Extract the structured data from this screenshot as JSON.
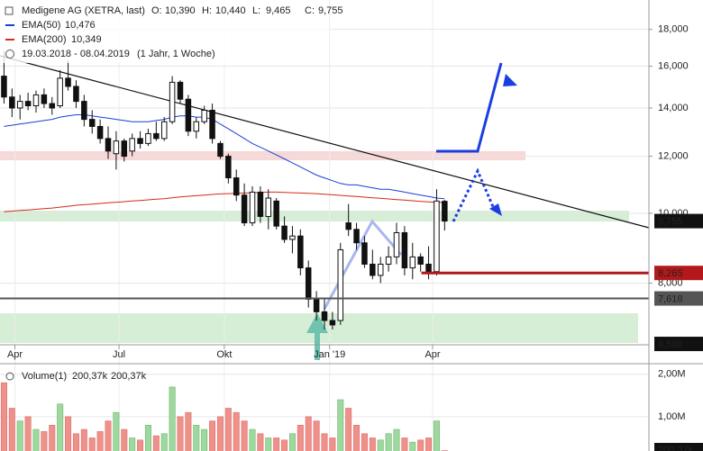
{
  "chart_data": {
    "type": "candlestick",
    "title": "Medigene AG (XETRA, last)",
    "ohlc_header": [
      {
        "key": "O:",
        "label": "10,390"
      },
      {
        "key": "H:",
        "label": "10,440"
      },
      {
        "key": "L:",
        "label": "9,465"
      },
      {
        "key": "C:",
        "label": "9,755"
      }
    ],
    "date_range": "19.03.2018 - 08.04.2019",
    "period": "(1 Jahr, 1 Woche)",
    "xlim": [
      0,
      81
    ],
    "xticks": [
      {
        "value": 1.86,
        "label": "Apr"
      },
      {
        "value": 14.86,
        "label": "Jul"
      },
      {
        "value": 28,
        "label": "Okt"
      },
      {
        "value": 41.14,
        "label": "Jan '19"
      },
      {
        "value": 54,
        "label": "Apr"
      }
    ],
    "ylim": [
      6570,
      19770
    ],
    "log_scale": true,
    "grid": true,
    "yticks": [
      {
        "value": 8000,
        "label": "8,000"
      },
      {
        "value": 10000,
        "label": "10,000"
      },
      {
        "value": 12000,
        "label": "12,000"
      },
      {
        "value": 14000,
        "label": "14,000"
      },
      {
        "value": 16000,
        "label": "16,000"
      },
      {
        "value": 18000,
        "label": "18,000"
      }
    ],
    "up_color": "#ffffff",
    "down_color": "#111111",
    "candles": {
      "open": [
        15500,
        14500,
        14000,
        14300,
        14100,
        14600,
        14200,
        14100,
        15400,
        15000,
        14300,
        13500,
        13200,
        12700,
        12100,
        12600,
        12200,
        12700,
        12500,
        12900,
        12700,
        13400,
        15200,
        14400,
        13000,
        13400,
        13900,
        12500,
        12000,
        11200,
        10600,
        9700,
        10700,
        9900,
        10400,
        9600,
        9200,
        9300,
        8400,
        7600,
        7300,
        7100,
        7100,
        9700,
        9500,
        9100,
        8500,
        8200,
        8500,
        8700,
        9400,
        8400,
        8700,
        8500,
        8300,
        10390
      ],
      "high": [
        16800,
        14900,
        14600,
        14700,
        14800,
        14900,
        14500,
        15800,
        16300,
        15300,
        14600,
        13900,
        13500,
        13200,
        13000,
        12700,
        12900,
        13000,
        13100,
        13400,
        13600,
        15500,
        15300,
        14600,
        13600,
        14100,
        14200,
        12600,
        12100,
        11500,
        11000,
        10900,
        10900,
        10800,
        10500,
        9900,
        9600,
        9500,
        8600,
        7800,
        7600,
        7300,
        9100,
        10300,
        9700,
        9300,
        8900,
        8700,
        9000,
        9700,
        9600,
        9100,
        8800,
        9000,
        10800,
        10440
      ],
      "low": [
        14200,
        13600,
        13500,
        13900,
        13800,
        14000,
        13700,
        14000,
        14800,
        14000,
        13200,
        12900,
        12500,
        11900,
        11500,
        11800,
        12000,
        12300,
        12400,
        12600,
        12600,
        13300,
        14200,
        12800,
        12700,
        13300,
        12500,
        11900,
        11000,
        10400,
        9600,
        9600,
        9700,
        9500,
        9500,
        9100,
        8800,
        8200,
        7400,
        7100,
        6900,
        6900,
        7000,
        9300,
        8900,
        8400,
        8100,
        8000,
        8300,
        8500,
        8200,
        8100,
        8300,
        8100,
        8200,
        9465
      ],
      "close": [
        14500,
        14000,
        14300,
        14100,
        14600,
        14200,
        14000,
        15400,
        15000,
        14300,
        13500,
        13200,
        12700,
        12200,
        12600,
        12000,
        12700,
        12500,
        12900,
        12700,
        13400,
        15200,
        14400,
        13000,
        13400,
        13900,
        12700,
        12000,
        11200,
        10600,
        9700,
        10700,
        9900,
        10500,
        9600,
        9200,
        9300,
        8400,
        7600,
        7300,
        7100,
        7000,
        8900,
        9500,
        9100,
        8500,
        8200,
        8500,
        8700,
        9400,
        8400,
        8700,
        8500,
        8300,
        10400,
        9755
      ]
    },
    "series": [
      {
        "name": "EMA(50)",
        "color": "#1a3fd6",
        "last_label": "10,476",
        "values": [
          13200,
          13250,
          13300,
          13350,
          13400,
          13450,
          13500,
          13600,
          13650,
          13700,
          13700,
          13650,
          13600,
          13550,
          13500,
          13450,
          13400,
          13400,
          13400,
          13450,
          13500,
          13600,
          13650,
          13650,
          13600,
          13600,
          13500,
          13300,
          13100,
          12900,
          12700,
          12500,
          12350,
          12200,
          12050,
          11900,
          11750,
          11600,
          11450,
          11300,
          11200,
          11100,
          11000,
          10950,
          10950,
          10900,
          10850,
          10800,
          10800,
          10750,
          10700,
          10650,
          10600,
          10550,
          10500,
          10476
        ]
      },
      {
        "name": "EMA(200)",
        "color": "#d62a1a",
        "last_label": "10,349",
        "values": [
          10050,
          10070,
          10090,
          10110,
          10130,
          10150,
          10170,
          10200,
          10230,
          10260,
          10280,
          10300,
          10320,
          10340,
          10360,
          10380,
          10400,
          10420,
          10440,
          10460,
          10480,
          10510,
          10540,
          10560,
          10580,
          10600,
          10620,
          10640,
          10650,
          10660,
          10670,
          10680,
          10690,
          10700,
          10700,
          10690,
          10680,
          10670,
          10660,
          10650,
          10630,
          10610,
          10590,
          10570,
          10550,
          10530,
          10510,
          10490,
          10470,
          10450,
          10430,
          10410,
          10390,
          10375,
          10360,
          10349
        ]
      }
    ],
    "levels": [
      {
        "value": 9755,
        "label": "9,755",
        "color": "#111111"
      },
      {
        "value": 8265,
        "label": "8,265",
        "color": "#b3191b"
      },
      {
        "value": 7618,
        "label": "7,618",
        "color": "#555555"
      },
      {
        "value": 6588,
        "label": "6,588",
        "color": "#111111"
      }
    ],
    "volume": {
      "name": "Volume(1)",
      "last_label": "200,37k",
      "ma_label": "200,37k",
      "ma_color": "#2a8fd6",
      "up_color": "#9fd89f",
      "down_color": "#f0908a",
      "ylim": [
        0,
        2250000
      ],
      "yticks": [
        {
          "value": 1000000,
          "label": "1,00M"
        },
        {
          "value": 2000000,
          "label": "2,00M"
        }
      ],
      "values": [
        1800000,
        1200000,
        900000,
        1000000,
        700000,
        650000,
        800000,
        1300000,
        1000000,
        600000,
        700000,
        500000,
        650000,
        900000,
        1100000,
        700000,
        500000,
        450000,
        800000,
        550000,
        600000,
        1700000,
        1000000,
        1100000,
        800000,
        700000,
        900000,
        1000000,
        1200000,
        1100000,
        900000,
        700000,
        600000,
        500000,
        500000,
        450000,
        600000,
        800000,
        1000000,
        900000,
        600000,
        500000,
        1400000,
        1200000,
        800000,
        600000,
        500000,
        450000,
        600000,
        700000,
        500000,
        400000,
        450000,
        500000,
        900000,
        200370
      ]
    }
  }
}
